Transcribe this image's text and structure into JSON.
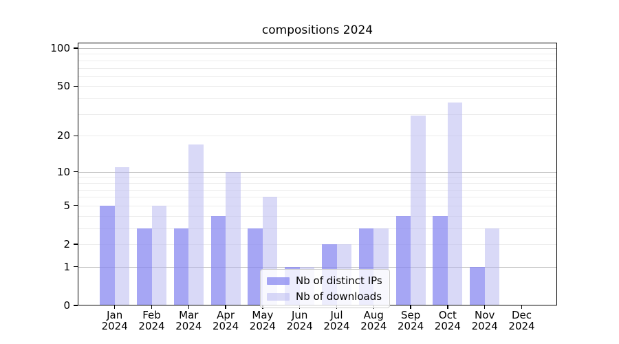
{
  "title": "compositions 2024",
  "legend": {
    "items": [
      {
        "label": "Nb of distinct IPs",
        "color": "rgba(136,136,240,0.75)"
      },
      {
        "label": "Nb of downloads",
        "color": "rgba(180,180,240,0.50)"
      }
    ]
  },
  "chart_data": {
    "type": "bar",
    "title": "compositions 2024",
    "xlabel": "",
    "ylabel": "",
    "year": "2024",
    "months": [
      {
        "month": "Jan",
        "year": "2024"
      },
      {
        "month": "Feb",
        "year": "2024"
      },
      {
        "month": "Mar",
        "year": "2024"
      },
      {
        "month": "Apr",
        "year": "2024"
      },
      {
        "month": "May",
        "year": "2024"
      },
      {
        "month": "Jun",
        "year": "2024"
      },
      {
        "month": "Jul",
        "year": "2024"
      },
      {
        "month": "Aug",
        "year": "2024"
      },
      {
        "month": "Sep",
        "year": "2024"
      },
      {
        "month": "Oct",
        "year": "2024"
      },
      {
        "month": "Nov",
        "year": "2024"
      },
      {
        "month": "Dec",
        "year": "2024"
      }
    ],
    "categories": [
      "Jan 2024",
      "Feb 2024",
      "Mar 2024",
      "Apr 2024",
      "May 2024",
      "Jun 2024",
      "Jul 2024",
      "Aug 2024",
      "Sep 2024",
      "Oct 2024",
      "Nov 2024",
      "Dec 2024"
    ],
    "series": [
      {
        "name": "Nb of distinct IPs",
        "color": "rgba(136,136,240,0.75)",
        "values": [
          5,
          3,
          3,
          4,
          3,
          1,
          2,
          3,
          4,
          4,
          1,
          0
        ]
      },
      {
        "name": "Nb of downloads",
        "color": "rgba(180,180,240,0.50)",
        "values": [
          11,
          5,
          17,
          10,
          6,
          1,
          2,
          3,
          29,
          37,
          3,
          0
        ]
      }
    ],
    "yticks": [
      0,
      1,
      2,
      5,
      10,
      20,
      50,
      100
    ],
    "major_gridlines": [
      1,
      10,
      100
    ],
    "minor_gridlines": [
      2,
      3,
      4,
      5,
      6,
      7,
      8,
      9,
      20,
      30,
      40,
      50,
      60,
      70,
      80,
      90
    ],
    "scale": "log10(1+y)",
    "ylim": [
      0,
      110
    ],
    "grid": true,
    "legend_position": "lower center"
  }
}
